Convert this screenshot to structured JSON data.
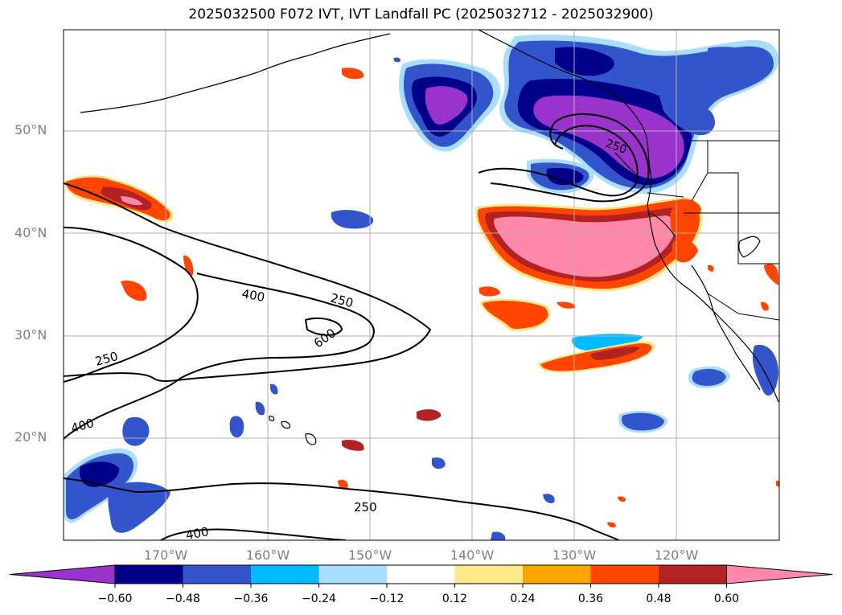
{
  "title": "2025032500 F072 IVT, IVT Landfall PC (2025032712 - 2025032900)",
  "lon_labels": [
    "170°W",
    "160°W",
    "150°W",
    "140°W",
    "130°W",
    "120°W"
  ],
  "lat_labels": [
    "50°N",
    "40°N",
    "30°N",
    "20°N"
  ],
  "contour_labels": [
    "400",
    "250",
    "600",
    "250",
    "400",
    "250",
    "400",
    "250"
  ],
  "colorbar": {
    "ticks": [
      "−0.60",
      "−0.48",
      "−0.36",
      "−0.24",
      "−0.12",
      "0.12",
      "0.24",
      "0.36",
      "0.48",
      "0.60"
    ],
    "colors": [
      "#9933cc",
      "#00008b",
      "#3355cc",
      "#00bbff",
      "#aadeff",
      "#ffffff",
      "#ffe88a",
      "#ffa500",
      "#ff4500",
      "#b22222",
      "#ff88aa"
    ]
  },
  "colors": {
    "gridline": "#b0b0b0",
    "coastline": "#000000",
    "contour": "#000000",
    "axis_label": "#808080"
  }
}
